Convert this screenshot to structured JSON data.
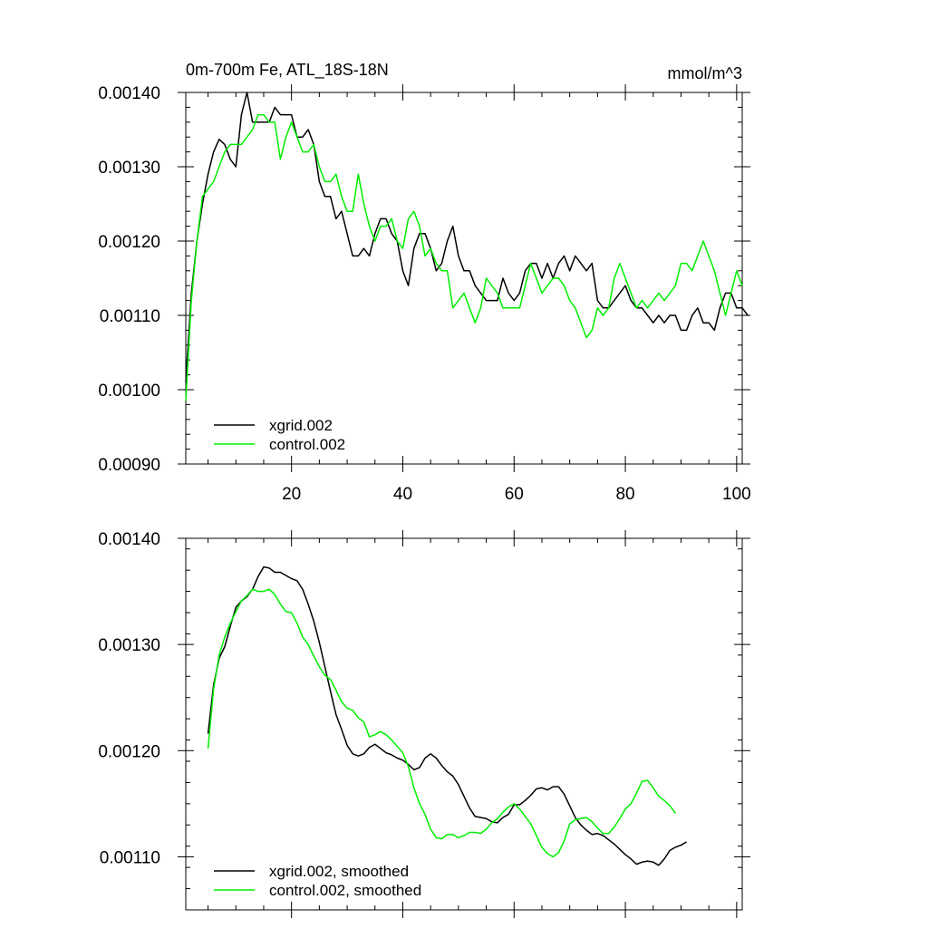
{
  "chart_data": [
    {
      "type": "line",
      "title": "0m-700m Fe, ATL_18S-18N",
      "units_label": "mmol/m^3",
      "xlabel": "",
      "ylabel": "",
      "xlim": [
        1,
        101
      ],
      "ylim": [
        0.0009,
        0.0014
      ],
      "x_ticks": [
        20,
        40,
        60,
        80,
        100
      ],
      "x_tick_labels": [
        "20",
        "40",
        "60",
        "80",
        "100"
      ],
      "y_ticks": [
        0.0009,
        0.001,
        0.0011,
        0.0012,
        0.0013,
        0.0014
      ],
      "y_tick_labels": [
        "0.00090",
        "0.00100",
        "0.00110",
        "0.00120",
        "0.00130",
        "0.00140"
      ],
      "legend_position": "bottom-left",
      "series": [
        {
          "name": "xgrid.002",
          "color": "#000000",
          "x_start": 1,
          "values": [
            0.00101,
            0.00113,
            0.0012,
            0.00125,
            0.00129,
            0.00132,
            0.001337,
            0.00133,
            0.00131,
            0.0013,
            0.00137,
            0.0014,
            0.00136,
            0.00136,
            0.00136,
            0.00136,
            0.00138,
            0.00137,
            0.00137,
            0.00137,
            0.00134,
            0.00134,
            0.00135,
            0.00133,
            0.00128,
            0.00126,
            0.00126,
            0.00123,
            0.00124,
            0.00121,
            0.00118,
            0.00118,
            0.00119,
            0.00118,
            0.00121,
            0.00123,
            0.00123,
            0.00121,
            0.0012,
            0.00116,
            0.00114,
            0.00119,
            0.00121,
            0.00121,
            0.00119,
            0.00116,
            0.00117,
            0.0012,
            0.00122,
            0.00118,
            0.00116,
            0.00116,
            0.00114,
            0.00113,
            0.00112,
            0.00112,
            0.00112,
            0.00115,
            0.00113,
            0.00112,
            0.00113,
            0.00116,
            0.00117,
            0.00117,
            0.00115,
            0.00117,
            0.00115,
            0.00117,
            0.00118,
            0.00116,
            0.00118,
            0.00117,
            0.00116,
            0.00117,
            0.00112,
            0.00111,
            0.00111,
            0.00112,
            0.00113,
            0.00114,
            0.00112,
            0.00111,
            0.00111,
            0.0011,
            0.00109,
            0.0011,
            0.00109,
            0.0011,
            0.0011,
            0.00108,
            0.00108,
            0.0011,
            0.00111,
            0.00109,
            0.00109,
            0.00108,
            0.00111,
            0.00113,
            0.00113,
            0.00111,
            0.00111,
            0.0011
          ]
        },
        {
          "name": "control.002",
          "color": "#00ee00",
          "x_start": 1,
          "values": [
            0.000985,
            0.00112,
            0.0012,
            0.00126,
            0.00127,
            0.00128,
            0.0013,
            0.00132,
            0.00133,
            0.00133,
            0.00133,
            0.00134,
            0.00135,
            0.00137,
            0.00137,
            0.00136,
            0.00136,
            0.00131,
            0.00134,
            0.00136,
            0.00134,
            0.00132,
            0.00132,
            0.00133,
            0.0013,
            0.00128,
            0.00128,
            0.00129,
            0.00126,
            0.00124,
            0.00124,
            0.00129,
            0.00125,
            0.00122,
            0.0012,
            0.00122,
            0.00122,
            0.00123,
            0.0012,
            0.00119,
            0.00123,
            0.00124,
            0.00122,
            0.00118,
            0.00119,
            0.00117,
            0.00116,
            0.00116,
            0.00111,
            0.00112,
            0.00113,
            0.00111,
            0.00109,
            0.00111,
            0.00115,
            0.00114,
            0.00113,
            0.00111,
            0.00111,
            0.00111,
            0.00111,
            0.00114,
            0.00117,
            0.00115,
            0.00113,
            0.00114,
            0.00115,
            0.00115,
            0.00114,
            0.00112,
            0.00111,
            0.00109,
            0.00107,
            0.00108,
            0.00111,
            0.0011,
            0.00111,
            0.00115,
            0.00117,
            0.00115,
            0.00113,
            0.00111,
            0.00112,
            0.00111,
            0.00112,
            0.00113,
            0.00112,
            0.00113,
            0.00114,
            0.00117,
            0.00117,
            0.00116,
            0.00118,
            0.0012,
            0.00118,
            0.00116,
            0.00113,
            0.0011,
            0.00113,
            0.00116,
            0.00114
          ]
        }
      ]
    },
    {
      "type": "line",
      "title": "",
      "xlabel": "",
      "ylabel": "",
      "xlim": [
        1,
        101
      ],
      "ylim": [
        0.00105,
        0.0014
      ],
      "x_ticks": [
        20,
        40,
        60,
        80,
        100
      ],
      "x_tick_labels": [],
      "y_ticks": [
        0.0011,
        0.0012,
        0.0013,
        0.0014
      ],
      "y_tick_labels": [
        "0.00110",
        "0.00120",
        "0.00130",
        "0.00140"
      ],
      "legend_position": "bottom-left",
      "series": [
        {
          "name": "xgrid.002, smoothed",
          "color": "#000000",
          "x_start": 5,
          "values": [
            0.001216,
            0.001262,
            0.001287,
            0.001298,
            0.001317,
            0.001335,
            0.001341,
            0.001345,
            0.001352,
            0.001364,
            0.001373,
            0.001372,
            0.001368,
            0.001368,
            0.001365,
            0.001362,
            0.00136,
            0.001352,
            0.001338,
            0.001322,
            0.001302,
            0.001279,
            0.001256,
            0.001234,
            0.00122,
            0.001205,
            0.001197,
            0.001195,
            0.001197,
            0.001203,
            0.001206,
            0.001202,
            0.001198,
            0.001196,
            0.001193,
            0.001191,
            0.001187,
            0.001182,
            0.001184,
            0.001193,
            0.001197,
            0.001193,
            0.001186,
            0.00118,
            0.001176,
            0.001168,
            0.001157,
            0.001146,
            0.001138,
            0.001137,
            0.001136,
            0.001133,
            0.001132,
            0.001137,
            0.00114,
            0.001149,
            0.001149,
            0.001153,
            0.001158,
            0.001164,
            0.001165,
            0.001163,
            0.001166,
            0.001166,
            0.001159,
            0.001148,
            0.001137,
            0.00113,
            0.001125,
            0.001121,
            0.001122,
            0.00112,
            0.001116,
            0.001112,
            0.001107,
            0.001102,
            0.001098,
            0.001093,
            0.001095,
            0.001096,
            0.001095,
            0.001092,
            0.001098,
            0.001106,
            0.001109,
            0.001111,
            0.001114
          ]
        },
        {
          "name": "control.002, smoothed",
          "color": "#00ee00",
          "x_start": 5,
          "values": [
            0.001202,
            0.001258,
            0.00129,
            0.001307,
            0.00132,
            0.001331,
            0.001341,
            0.001346,
            0.001352,
            0.00135,
            0.00135,
            0.001352,
            0.001347,
            0.001338,
            0.001331,
            0.00133,
            0.00132,
            0.001307,
            0.0013,
            0.001289,
            0.001279,
            0.001271,
            0.001267,
            0.001257,
            0.001246,
            0.00124,
            0.001238,
            0.001231,
            0.001227,
            0.001213,
            0.001215,
            0.001218,
            0.001215,
            0.00121,
            0.001204,
            0.001198,
            0.001185,
            0.001165,
            0.00115,
            0.00114,
            0.001126,
            0.001118,
            0.001117,
            0.001121,
            0.001121,
            0.001118,
            0.00112,
            0.001123,
            0.001123,
            0.001122,
            0.001126,
            0.001132,
            0.001136,
            0.001142,
            0.001147,
            0.00115,
            0.001145,
            0.001138,
            0.001131,
            0.00112,
            0.001109,
            0.001103,
            0.0011,
            0.001104,
            0.001115,
            0.001131,
            0.001135,
            0.001136,
            0.001137,
            0.001133,
            0.001127,
            0.001122,
            0.001122,
            0.001128,
            0.001136,
            0.001145,
            0.00115,
            0.00116,
            0.001171,
            0.001172,
            0.001165,
            0.001157,
            0.001153,
            0.001148,
            0.001141
          ]
        }
      ]
    }
  ]
}
